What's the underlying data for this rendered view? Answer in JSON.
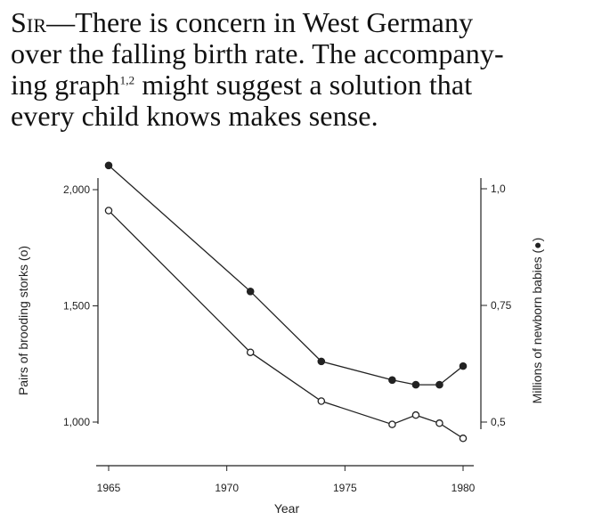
{
  "letter": {
    "salutation": "Sir",
    "line1_rest": "—There is concern in West Germany",
    "line2": "over the falling birth rate. The accompany-",
    "line3_before_ref": "ing graph",
    "reference": "1,2",
    "line3_after_ref": " might suggest a solution that",
    "line4": "every child knows makes sense."
  },
  "chart_data": {
    "type": "line",
    "xlabel": "Year",
    "ylabel_left": "Pairs of brooding storks (o)",
    "ylabel_right": "Millions of newborn babies (●)",
    "x_ticks": [
      1965,
      1970,
      1975,
      1980
    ],
    "x_tick_labels": [
      "1965",
      "1970",
      "1975",
      "1980"
    ],
    "xlim": [
      1965,
      1980
    ],
    "y_left_ticks": [
      1000,
      1500,
      2000
    ],
    "y_left_tick_labels": [
      "1,000",
      "1,500",
      "2,000"
    ],
    "ylim_left": [
      1000,
      2000
    ],
    "y_right_ticks": [
      0.5,
      0.75,
      1.0
    ],
    "y_right_tick_labels": [
      "0,5",
      "0,75",
      "1,0"
    ],
    "ylim_right": [
      0.5,
      1.0
    ],
    "grid": false,
    "series": [
      {
        "axis": "right",
        "marker": "filled-circle",
        "x": [
          1965,
          1971,
          1974,
          1977,
          1978,
          1979,
          1980
        ],
        "y": [
          1.05,
          0.78,
          0.63,
          0.59,
          0.58,
          0.58,
          0.62
        ]
      },
      {
        "axis": "left",
        "marker": "open-circle",
        "x": [
          1965,
          1971,
          1974,
          1977,
          1978,
          1979,
          1980
        ],
        "y": [
          1910,
          1300,
          1090,
          990,
          1030,
          995,
          930
        ]
      }
    ]
  },
  "colors": {
    "ink": "#222222",
    "background": "#ffffff"
  }
}
